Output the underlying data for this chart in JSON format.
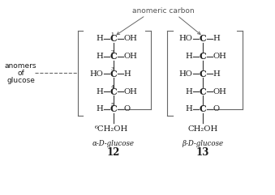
{
  "bg_color": "#ffffff",
  "fig_bg": "#ffffff",
  "text_color": "#1a1a1a",
  "anomeric_label": "anomeric carbon",
  "alpha_label": "α-D-glucose",
  "beta_label": "β-D-glucose",
  "alpha_num": "12",
  "beta_num": "13",
  "anomers_lines": [
    "anomers",
    "of",
    "glucose"
  ],
  "alpha_sups": [
    "1",
    "2",
    "3",
    "4",
    "5",
    "6"
  ],
  "alpha_lefts": [
    "H",
    "H",
    "HO",
    "H",
    "H"
  ],
  "alpha_rights": [
    "OH",
    "OH",
    "H",
    "OH",
    "O"
  ],
  "beta_lefts": [
    "HO",
    "H",
    "HO",
    "H",
    "H"
  ],
  "beta_rights": [
    "H",
    "OH",
    "H",
    "OH",
    "O"
  ],
  "line_color": "#444444",
  "bracket_color": "#666666",
  "arrow_color": "#666666",
  "side_label_color": "#1a1a1a"
}
